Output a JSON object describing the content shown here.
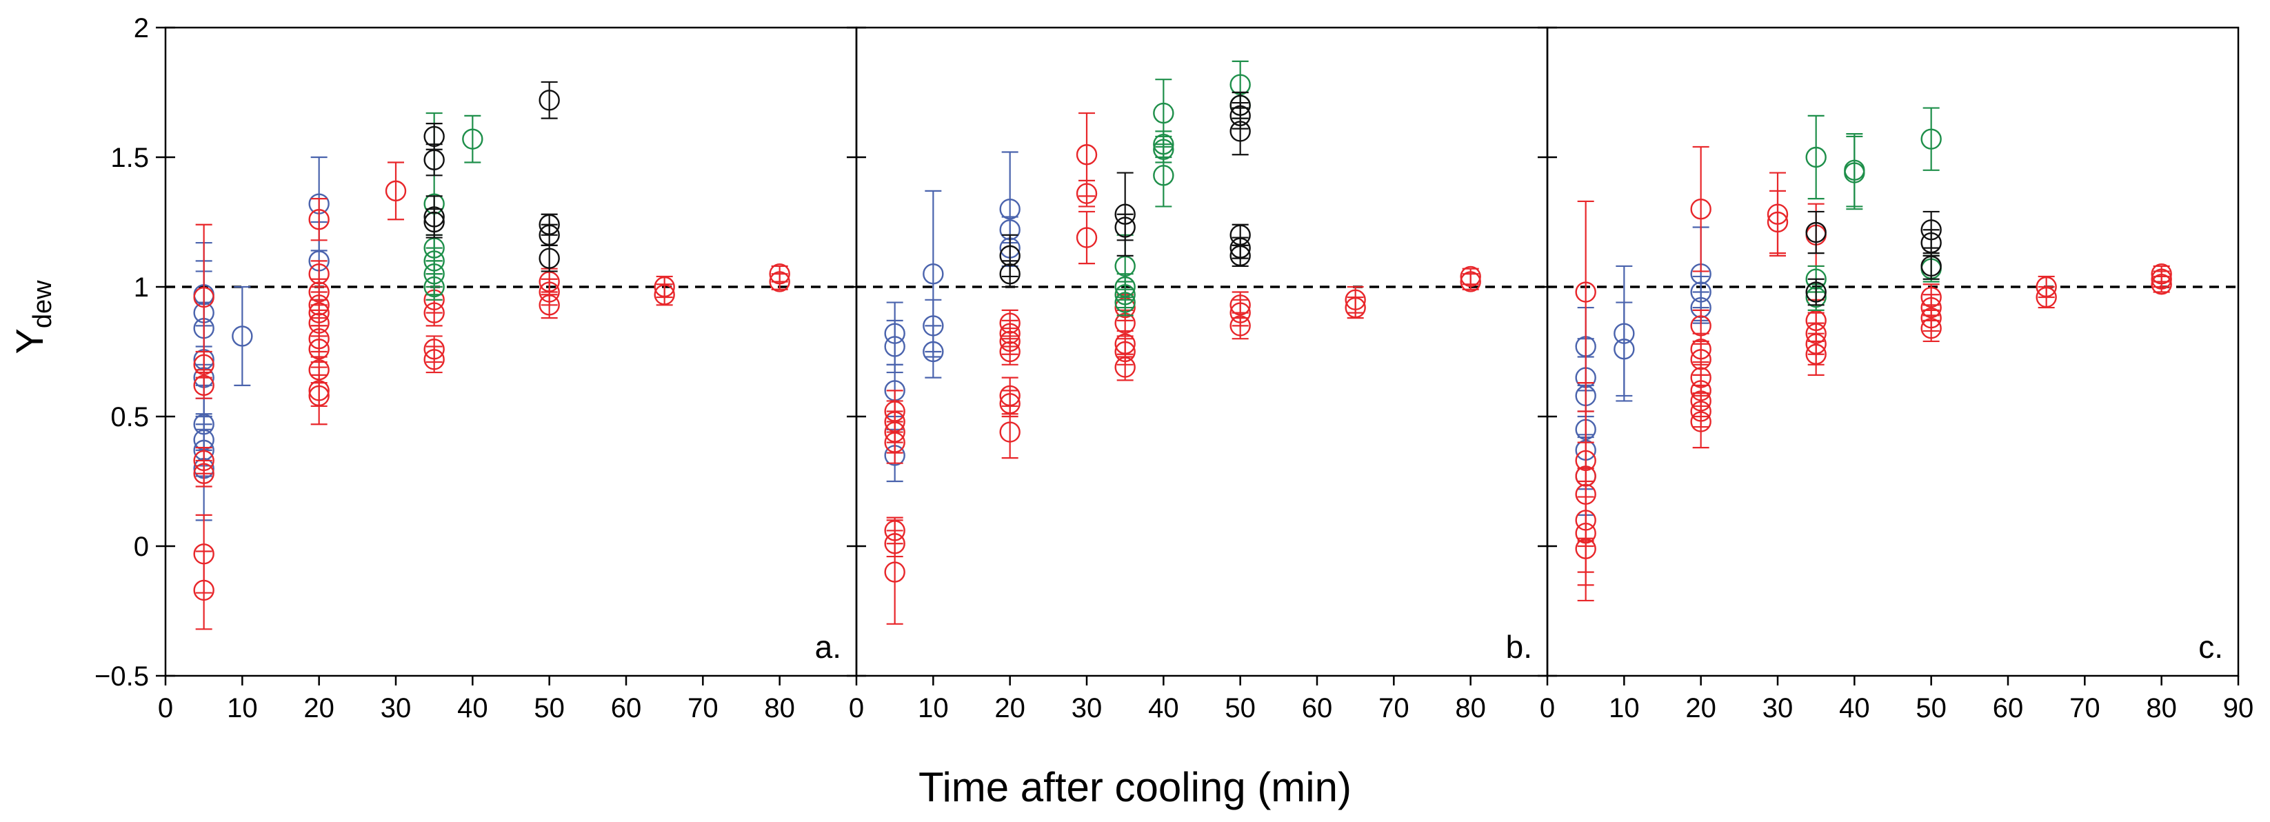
{
  "figure": {
    "xlabel": "Time after cooling (min)",
    "ylabel_main": "Y",
    "ylabel_sub": "dew"
  },
  "colors": {
    "red": "#e8262a",
    "blue": "#4a63ad",
    "green": "#1e8f4a",
    "black": "#111111",
    "axis": "#000000"
  },
  "chart_data": [
    {
      "type": "scatter",
      "panel_label": "a.",
      "xlim": [
        0,
        90
      ],
      "ylim": [
        -0.5,
        2
      ],
      "xticks": [
        "0",
        "10",
        "20",
        "30",
        "40",
        "50",
        "60",
        "70",
        "80"
      ],
      "yticks": [
        "−0.5",
        "0",
        "0.5",
        "1",
        "1.5",
        "2"
      ],
      "reference_line_y": 1,
      "series": [
        {
          "color": "blue",
          "points": [
            [
              5,
              0.97,
              0.2
            ],
            [
              5,
              0.9,
              0.2
            ],
            [
              5,
              0.84,
              0.22
            ],
            [
              5,
              0.72,
              0.22
            ],
            [
              5,
              0.65,
              0.2
            ],
            [
              5,
              0.47,
              0.1
            ],
            [
              5,
              0.41,
              0.1
            ],
            [
              5,
              0.37,
              0.1
            ],
            [
              5,
              0.3,
              0.2
            ],
            [
              10,
              0.81,
              0.19
            ],
            [
              20,
              1.32,
              0.18
            ],
            [
              20,
              1.1,
              0.15
            ]
          ]
        },
        {
          "color": "red",
          "points": [
            [
              5,
              0.96,
              0.28
            ],
            [
              5,
              0.7,
              0.05
            ],
            [
              5,
              0.62,
              0.05
            ],
            [
              5,
              0.33,
              0.05
            ],
            [
              5,
              0.28,
              0.05
            ],
            [
              5,
              -0.03,
              0.15
            ],
            [
              5,
              -0.17,
              0.15
            ],
            [
              20,
              1.26,
              0.08
            ],
            [
              20,
              1.05,
              0.05
            ],
            [
              20,
              0.98,
              0.05
            ],
            [
              20,
              0.93,
              0.05
            ],
            [
              20,
              0.9,
              0.05
            ],
            [
              20,
              0.86,
              0.05
            ],
            [
              20,
              0.8,
              0.05
            ],
            [
              20,
              0.76,
              0.05
            ],
            [
              20,
              0.68,
              0.05
            ],
            [
              20,
              0.6,
              0.06
            ],
            [
              20,
              0.58,
              0.11
            ],
            [
              30,
              1.37,
              0.11
            ],
            [
              35,
              0.95,
              0.05
            ],
            [
              35,
              0.9,
              0.05
            ],
            [
              35,
              0.76,
              0.05
            ],
            [
              35,
              0.72,
              0.05
            ],
            [
              50,
              1.02,
              0.05
            ],
            [
              50,
              0.98,
              0.05
            ],
            [
              50,
              0.93,
              0.05
            ],
            [
              65,
              1.0,
              0.04
            ],
            [
              65,
              0.97,
              0.04
            ],
            [
              80,
              1.05,
              0.03
            ],
            [
              80,
              1.02,
              0.03
            ]
          ]
        },
        {
          "color": "green",
          "points": [
            [
              35,
              1.32,
              0.35
            ],
            [
              35,
              1.15,
              0.05
            ],
            [
              35,
              1.1,
              0.05
            ],
            [
              35,
              1.05,
              0.05
            ],
            [
              35,
              1.0,
              0.05
            ],
            [
              40,
              1.57,
              0.09
            ]
          ]
        },
        {
          "color": "black",
          "points": [
            [
              35,
              1.58,
              0.05
            ],
            [
              35,
              1.49,
              0.06
            ],
            [
              35,
              1.27,
              0.08
            ],
            [
              35,
              1.25,
              0.05
            ],
            [
              50,
              1.72,
              0.07
            ],
            [
              50,
              1.24,
              0.04
            ],
            [
              50,
              1.2,
              0.04
            ],
            [
              50,
              1.11,
              0.05
            ]
          ]
        }
      ]
    },
    {
      "type": "scatter",
      "panel_label": "b.",
      "xlim": [
        0,
        90
      ],
      "ylim": [
        -0.5,
        2
      ],
      "xticks": [
        "0",
        "10",
        "20",
        "30",
        "40",
        "50",
        "60",
        "70",
        "80"
      ],
      "yticks": [
        "−0.5",
        "0",
        "0.5",
        "1",
        "1.5",
        "2"
      ],
      "reference_line_y": 1,
      "series": [
        {
          "color": "blue",
          "points": [
            [
              5,
              0.82,
              0.12
            ],
            [
              5,
              0.77,
              0.1
            ],
            [
              5,
              0.6,
              0.1
            ],
            [
              5,
              0.35,
              0.1
            ],
            [
              10,
              1.05,
              0.32
            ],
            [
              10,
              0.85,
              0.1
            ],
            [
              10,
              0.75,
              0.1
            ],
            [
              20,
              1.3,
              0.22
            ],
            [
              20,
              1.22,
              0.05
            ],
            [
              20,
              1.15,
              0.05
            ]
          ]
        },
        {
          "color": "red",
          "points": [
            [
              5,
              0.52,
              0.08
            ],
            [
              5,
              0.48,
              0.08
            ],
            [
              5,
              0.44,
              0.08
            ],
            [
              5,
              0.4,
              0.08
            ],
            [
              5,
              0.06,
              0.05
            ],
            [
              5,
              0.01,
              0.05
            ],
            [
              5,
              -0.1,
              0.2
            ],
            [
              20,
              0.86,
              0.05
            ],
            [
              20,
              0.82,
              0.05
            ],
            [
              20,
              0.79,
              0.05
            ],
            [
              20,
              0.75,
              0.05
            ],
            [
              20,
              0.58,
              0.07
            ],
            [
              20,
              0.55,
              0.05
            ],
            [
              20,
              0.44,
              0.1
            ],
            [
              30,
              1.51,
              0.16
            ],
            [
              30,
              1.36,
              0.05
            ],
            [
              30,
              1.19,
              0.1
            ],
            [
              35,
              0.92,
              0.05
            ],
            [
              35,
              0.86,
              0.05
            ],
            [
              35,
              0.78,
              0.05
            ],
            [
              35,
              0.75,
              0.05
            ],
            [
              35,
              0.69,
              0.05
            ],
            [
              50,
              0.93,
              0.05
            ],
            [
              50,
              0.9,
              0.05
            ],
            [
              50,
              0.85,
              0.05
            ],
            [
              65,
              0.95,
              0.05
            ],
            [
              65,
              0.92,
              0.04
            ],
            [
              80,
              1.04,
              0.03
            ],
            [
              80,
              1.02,
              0.03
            ]
          ]
        },
        {
          "color": "green",
          "points": [
            [
              35,
              1.08,
              0.12
            ],
            [
              35,
              1.0,
              0.05
            ],
            [
              35,
              0.97,
              0.05
            ],
            [
              35,
              0.94,
              0.05
            ],
            [
              40,
              1.67,
              0.13
            ],
            [
              40,
              1.55,
              0.05
            ],
            [
              40,
              1.53,
              0.05
            ],
            [
              40,
              1.43,
              0.12
            ],
            [
              50,
              1.78,
              0.09
            ],
            [
              50,
              1.7,
              0.05
            ]
          ]
        },
        {
          "color": "black",
          "points": [
            [
              20,
              1.12,
              0.08
            ],
            [
              20,
              1.05,
              0.05
            ],
            [
              35,
              1.28,
              0.16
            ],
            [
              35,
              1.23,
              0.05
            ],
            [
              50,
              1.7,
              0.05
            ],
            [
              50,
              1.66,
              0.05
            ],
            [
              50,
              1.6,
              0.09
            ],
            [
              50,
              1.2,
              0.04
            ],
            [
              50,
              1.15,
              0.04
            ],
            [
              50,
              1.12,
              0.04
            ]
          ]
        }
      ]
    },
    {
      "type": "scatter",
      "panel_label": "c.",
      "xlim": [
        0,
        90
      ],
      "ylim": [
        -0.5,
        2
      ],
      "xticks": [
        "0",
        "10",
        "20",
        "30",
        "40",
        "50",
        "60",
        "70",
        "80",
        "90"
      ],
      "yticks": [
        "−0.5",
        "0",
        "0.5",
        "1",
        "1.5",
        "2"
      ],
      "reference_line_y": 1,
      "series": [
        {
          "color": "blue",
          "points": [
            [
              5,
              0.77,
              0.15
            ],
            [
              5,
              0.65,
              0.15
            ],
            [
              5,
              0.58,
              0.15
            ],
            [
              5,
              0.45,
              0.15
            ],
            [
              5,
              0.37,
              0.15
            ],
            [
              5,
              0.27,
              0.15
            ],
            [
              10,
              0.82,
              0.26
            ],
            [
              10,
              0.76,
              0.18
            ],
            [
              20,
              1.05,
              0.18
            ],
            [
              20,
              0.98,
              0.06
            ],
            [
              20,
              0.92,
              0.06
            ]
          ]
        },
        {
          "color": "red",
          "points": [
            [
              5,
              0.98,
              0.35
            ],
            [
              5,
              0.33,
              0.3
            ],
            [
              5,
              0.27,
              0.25
            ],
            [
              5,
              0.2,
              0.2
            ],
            [
              5,
              0.1,
              0.2
            ],
            [
              5,
              0.05,
              0.2
            ],
            [
              5,
              -0.01,
              0.2
            ],
            [
              20,
              1.3,
              0.24
            ],
            [
              20,
              0.85,
              0.06
            ],
            [
              20,
              0.76,
              0.06
            ],
            [
              20,
              0.72,
              0.06
            ],
            [
              20,
              0.65,
              0.06
            ],
            [
              20,
              0.6,
              0.06
            ],
            [
              20,
              0.56,
              0.06
            ],
            [
              20,
              0.52,
              0.06
            ],
            [
              20,
              0.48,
              0.1
            ],
            [
              30,
              1.28,
              0.16
            ],
            [
              30,
              1.25,
              0.12
            ],
            [
              35,
              1.2,
              0.12
            ],
            [
              35,
              0.87,
              0.08
            ],
            [
              35,
              0.82,
              0.08
            ],
            [
              35,
              0.78,
              0.08
            ],
            [
              35,
              0.74,
              0.08
            ],
            [
              50,
              0.96,
              0.05
            ],
            [
              50,
              0.92,
              0.05
            ],
            [
              50,
              0.88,
              0.05
            ],
            [
              50,
              0.84,
              0.05
            ],
            [
              65,
              1.0,
              0.04
            ],
            [
              65,
              0.96,
              0.04
            ],
            [
              80,
              1.05,
              0.03
            ],
            [
              80,
              1.03,
              0.03
            ],
            [
              80,
              1.01,
              0.03
            ]
          ]
        },
        {
          "color": "green",
          "points": [
            [
              35,
              1.5,
              0.16
            ],
            [
              35,
              1.03,
              0.05
            ],
            [
              35,
              0.96,
              0.05
            ],
            [
              40,
              1.45,
              0.14
            ],
            [
              40,
              1.44,
              0.14
            ],
            [
              50,
              1.57,
              0.12
            ],
            [
              50,
              1.07,
              0.05
            ]
          ]
        },
        {
          "color": "black",
          "points": [
            [
              35,
              1.21,
              0.08
            ],
            [
              35,
              0.98,
              0.05
            ],
            [
              50,
              1.22,
              0.07
            ],
            [
              50,
              1.17,
              0.05
            ],
            [
              50,
              1.08,
              0.05
            ]
          ]
        }
      ]
    }
  ]
}
